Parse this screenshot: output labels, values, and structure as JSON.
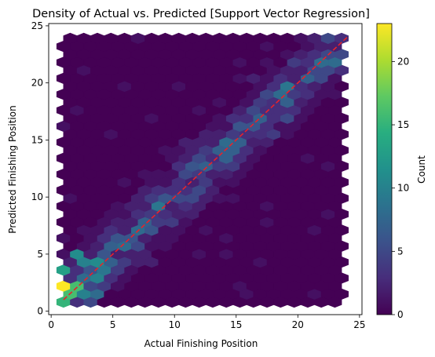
{
  "chart_data": {
    "type": "hexbin",
    "title": "Density of Actual vs. Predicted [Support Vector Regression]",
    "xlabel": "Actual Finishing Position",
    "ylabel": "Predicted Finishing Position",
    "xlim": [
      -0.2,
      25.2
    ],
    "ylim": [
      -0.3,
      25.2
    ],
    "xticks": [
      0,
      5,
      10,
      15,
      20,
      25
    ],
    "yticks": [
      0,
      5,
      10,
      15,
      20,
      25
    ],
    "colormap": "viridis",
    "colorbar": {
      "label": "Count",
      "min": 0,
      "max": 23,
      "ticks": [
        0,
        5,
        10,
        15,
        20
      ]
    },
    "grid": false,
    "reference_line": {
      "from": [
        1,
        1
      ],
      "to": [
        24,
        24
      ],
      "color": "#e8222a",
      "style": "dashed"
    },
    "bin_extent": {
      "x": [
        1,
        24
      ],
      "y": [
        0.8,
        23.9
      ]
    },
    "hexbin_note": "counts estimated per hexagon",
    "hot_bins": [
      {
        "x": 1.0,
        "y": 2.2,
        "count": 23
      },
      {
        "x": 2.1,
        "y": 2.9,
        "count": 22
      },
      {
        "x": 2.1,
        "y": 1.5,
        "count": 17
      },
      {
        "x": 1.0,
        "y": 0.8,
        "count": 15
      },
      {
        "x": 1.0,
        "y": 3.6,
        "count": 13
      },
      {
        "x": 2.1,
        "y": 5.0,
        "count": 11
      },
      {
        "x": 3.3,
        "y": 5.7,
        "count": 9
      },
      {
        "x": 4.4,
        "y": 7.2,
        "count": 9
      },
      {
        "x": 5.5,
        "y": 7.9,
        "count": 12
      },
      {
        "x": 7.7,
        "y": 10.7,
        "count": 15
      },
      {
        "x": 8.8,
        "y": 10.1,
        "count": 13
      },
      {
        "x": 9.9,
        "y": 13.6,
        "count": 11
      },
      {
        "x": 11.0,
        "y": 12.9,
        "count": 12
      },
      {
        "x": 12.1,
        "y": 12.2,
        "count": 14
      },
      {
        "x": 13.2,
        "y": 12.9,
        "count": 12
      },
      {
        "x": 16.5,
        "y": 17.8,
        "count": 13
      },
      {
        "x": 17.6,
        "y": 17.1,
        "count": 14
      },
      {
        "x": 18.7,
        "y": 19.2,
        "count": 19
      },
      {
        "x": 19.8,
        "y": 18.5,
        "count": 18
      },
      {
        "x": 19.8,
        "y": 19.9,
        "count": 14
      }
    ]
  }
}
